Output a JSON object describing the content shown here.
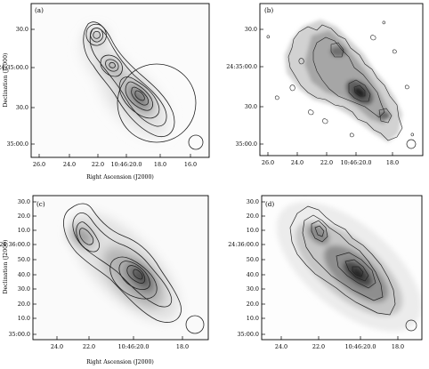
{
  "figure": {
    "panels": [
      {
        "label": "(a)",
        "x_ticks": [
          "26.0",
          "24.0",
          "22.0",
          "10:46:20.0",
          "18.0",
          "16.0"
        ],
        "y_ticks": [
          "30.0",
          "24:35:00.0",
          "30.0",
          "35:00.0"
        ],
        "x_axis_label": "Right Ascension (J2000)",
        "y_axis_label": "Declination (J2000)"
      },
      {
        "label": "(b)",
        "x_ticks": [
          "26.0",
          "24.0",
          "22.0",
          "10:46:20.0",
          "18.0"
        ],
        "y_ticks": [
          "30.0",
          "24:35:00.0",
          "30.0",
          "35:00.0"
        ],
        "x_axis_label": "",
        "y_axis_label": ""
      },
      {
        "label": "(c)",
        "x_ticks": [
          "24.0",
          "22.0",
          "10:46:20.0",
          "18.0"
        ],
        "y_ticks": [
          "30.0",
          "20.0",
          "10.0",
          "24:36:00.0",
          "50.0",
          "40.0",
          "30.0",
          "20.0",
          "10.0",
          "35:00.0"
        ],
        "x_axis_label": "Right Ascension (J2000)",
        "y_axis_label": "Declination (J2000)"
      },
      {
        "label": "(d)",
        "x_ticks": [
          "24.0",
          "22.0",
          "10:46:20.0",
          "18.0"
        ],
        "y_ticks": [
          "30.0",
          "20.0",
          "10.0",
          "24:36:00.0",
          "50.0",
          "40.0",
          "30.0",
          "20.0",
          "10.0",
          "35:00.0"
        ],
        "x_axis_label": "",
        "y_axis_label": ""
      }
    ]
  }
}
